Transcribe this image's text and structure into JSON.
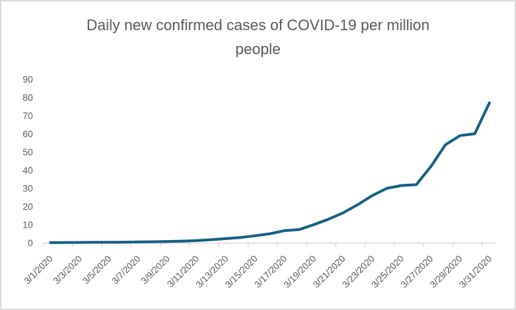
{
  "title": {
    "line1": "Daily new confirmed cases of COVID-19 per million",
    "line2": "people"
  },
  "chart_data": {
    "type": "line",
    "title": "Daily new confirmed cases of COVID-19 per million people",
    "x": [
      "3/1/2020",
      "3/2/2020",
      "3/3/2020",
      "3/4/2020",
      "3/5/2020",
      "3/6/2020",
      "3/7/2020",
      "3/8/2020",
      "3/9/2020",
      "3/10/2020",
      "3/11/2020",
      "3/12/2020",
      "3/13/2020",
      "3/14/2020",
      "3/15/2020",
      "3/16/2020",
      "3/17/2020",
      "3/18/2020",
      "3/19/2020",
      "3/20/2020",
      "3/21/2020",
      "3/22/2020",
      "3/23/2020",
      "3/24/2020",
      "3/25/2020",
      "3/26/2020",
      "3/27/2020",
      "3/28/2020",
      "3/29/2020",
      "3/30/2020",
      "3/31/2020"
    ],
    "values": [
      0.1,
      0.15,
      0.2,
      0.25,
      0.3,
      0.35,
      0.45,
      0.55,
      0.7,
      0.9,
      1.2,
      1.7,
      2.3,
      2.9,
      3.9,
      5,
      6.7,
      7.3,
      10,
      13,
      16.5,
      21,
      26,
      30,
      31.5,
      32,
      42,
      54,
      59,
      60,
      77
    ],
    "x_tick_labels": [
      "3/1/2020",
      "3/3/2020",
      "3/5/2020",
      "3/7/2020",
      "3/9/2020",
      "3/11/2020",
      "3/13/2020",
      "3/15/2020",
      "3/17/2020",
      "3/19/2020",
      "3/21/2020",
      "3/23/2020",
      "3/25/2020",
      "3/27/2020",
      "3/29/2020",
      "3/31/2020"
    ],
    "xlabel": "",
    "ylabel": "",
    "ylim": [
      0,
      90
    ],
    "ytick_step": 10,
    "y_tick_labels": [
      "0",
      "10",
      "20",
      "30",
      "40",
      "50",
      "60",
      "70",
      "80",
      "90"
    ],
    "grid": false,
    "legend": false,
    "line_color": "#156082",
    "text_color": "#595959",
    "axis_color": "#d9d9d9"
  }
}
